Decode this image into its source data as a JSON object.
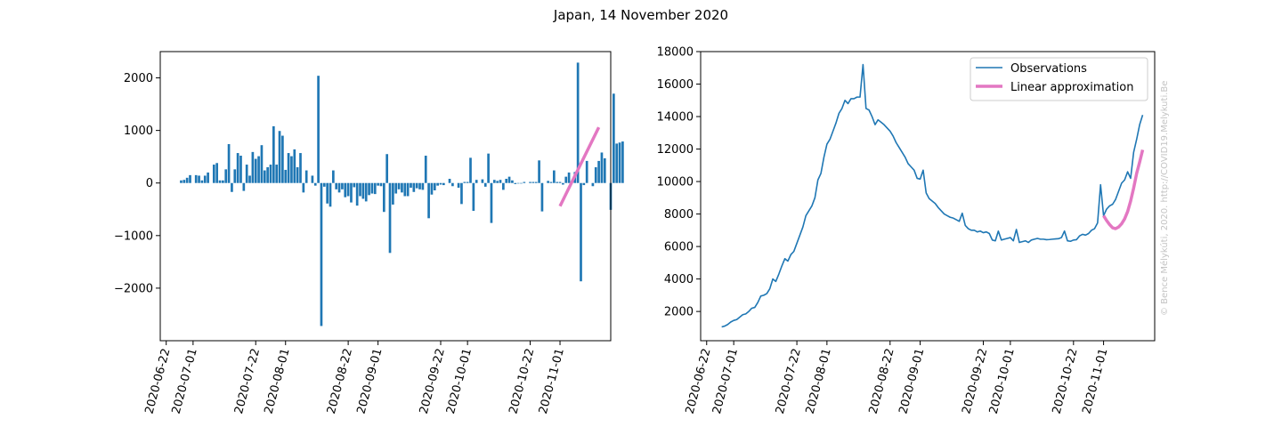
{
  "figure": {
    "title": "Japan, 14 November 2020",
    "watermark": "© Bence Mélykúti, 2020. http://COVID19.Melykuti.Be"
  },
  "colors": {
    "bars": "#1f77b4",
    "observations": "#1f77b4",
    "approximation": "#e377c2"
  },
  "chart_data": [
    {
      "type": "bar",
      "title": "",
      "xlabel": "",
      "ylabel": "",
      "x_start": "2020-06-27",
      "x_ticks": [
        "2020-06-22",
        "2020-07-01",
        "2020-07-22",
        "2020-08-01",
        "2020-08-22",
        "2020-09-01",
        "2020-09-22",
        "2020-10-01",
        "2020-10-22",
        "2020-11-01"
      ],
      "ylim": [
        -3000,
        2500
      ],
      "y_ticks": [
        -2000,
        -1000,
        0,
        1000,
        2000
      ],
      "grid": false,
      "values": [
        50,
        60,
        100,
        150,
        0,
        150,
        140,
        50,
        140,
        200,
        0,
        350,
        380,
        50,
        50,
        260,
        740,
        -170,
        260,
        570,
        520,
        -150,
        350,
        140,
        590,
        460,
        510,
        720,
        240,
        300,
        350,
        1080,
        350,
        990,
        900,
        250,
        570,
        510,
        640,
        300,
        570,
        -180,
        240,
        0,
        140,
        -50,
        2040,
        -2720,
        -70,
        -390,
        -450,
        240,
        -120,
        -180,
        -120,
        -270,
        -250,
        -370,
        -80,
        -430,
        -250,
        -300,
        -350,
        -230,
        -200,
        -210,
        -50,
        -60,
        -550,
        550,
        -1330,
        -410,
        -200,
        -120,
        -180,
        -250,
        -250,
        -90,
        -170,
        -100,
        -120,
        -130,
        520,
        -670,
        -220,
        -140,
        -50,
        -30,
        -40,
        0,
        80,
        -60,
        0,
        -90,
        -400,
        20,
        20,
        480,
        -530,
        60,
        0,
        70,
        -70,
        560,
        -760,
        60,
        40,
        60,
        -130,
        80,
        120,
        50,
        -20,
        -10,
        -10,
        20,
        0,
        20,
        20,
        20,
        430,
        -540,
        0,
        40,
        20,
        240,
        20,
        20,
        -30,
        120,
        200,
        0,
        210,
        2290,
        -1870,
        -40,
        420,
        0,
        -60,
        300,
        420,
        580,
        470,
        0,
        -510,
        1700,
        750,
        770,
        790
      ],
      "series": [
        {
          "name": "",
          "x_start": "2020-11-01",
          "x_end": "2020-11-14",
          "y_start": -440,
          "y_end": 1060
        }
      ]
    },
    {
      "type": "line",
      "title": "",
      "xlabel": "",
      "ylabel": "",
      "x_start": "2020-06-27",
      "x_ticks": [
        "2020-06-22",
        "2020-07-01",
        "2020-07-22",
        "2020-08-01",
        "2020-08-22",
        "2020-09-01",
        "2020-09-22",
        "2020-10-01",
        "2020-10-22",
        "2020-11-01"
      ],
      "ylim": [
        200,
        18000
      ],
      "y_ticks": [
        2000,
        4000,
        6000,
        8000,
        10000,
        12000,
        14000,
        16000,
        18000
      ],
      "grid": false,
      "legend": {
        "placement": "top-right",
        "entries": [
          "Observations",
          "Linear approximation"
        ]
      },
      "series": [
        {
          "name": "Observations",
          "values": [
            1050,
            1100,
            1200,
            1350,
            1450,
            1500,
            1650,
            1800,
            1850,
            2000,
            2200,
            2250,
            2550,
            2950,
            3000,
            3100,
            3400,
            4000,
            3850,
            4300,
            4800,
            5250,
            5100,
            5500,
            5700,
            6200,
            6700,
            7200,
            7900,
            8200,
            8500,
            9000,
            10100,
            10500,
            11500,
            12300,
            12600,
            13100,
            13600,
            14200,
            14500,
            15000,
            14800,
            15100,
            15100,
            15200,
            15200,
            17200,
            14500,
            14400,
            14000,
            13500,
            13800,
            13650,
            13500,
            13300,
            13100,
            12800,
            12400,
            12100,
            11800,
            11500,
            11100,
            10900,
            10700,
            10200,
            10150,
            10700,
            9300,
            8950,
            8800,
            8650,
            8400,
            8200,
            8000,
            7900,
            7800,
            7750,
            7650,
            7550,
            8050,
            7300,
            7100,
            7000,
            7000,
            6900,
            6950,
            6850,
            6900,
            6800,
            6400,
            6350,
            6950,
            6400,
            6450,
            6500,
            6550,
            6350,
            7050,
            6250,
            6300,
            6350,
            6250,
            6400,
            6450,
            6500,
            6450,
            6450,
            6420,
            6430,
            6450,
            6470,
            6480,
            6550,
            6950,
            6350,
            6320,
            6400,
            6420,
            6650,
            6750,
            6700,
            6800,
            7000,
            7100,
            7450,
            9800,
            7900,
            8300,
            8500,
            8600,
            8900,
            9400,
            9900,
            10100,
            10600,
            10200,
            11800,
            12600,
            13500,
            14100
          ],
          "draw_to_index": 140
        },
        {
          "name": "Linear approximation",
          "x_start": "2020-11-01",
          "values": [
            7900,
            7600,
            7350,
            7150,
            7100,
            7200,
            7400,
            7700,
            8150,
            8800,
            9600,
            10500,
            11200,
            11950
          ]
        }
      ]
    }
  ]
}
